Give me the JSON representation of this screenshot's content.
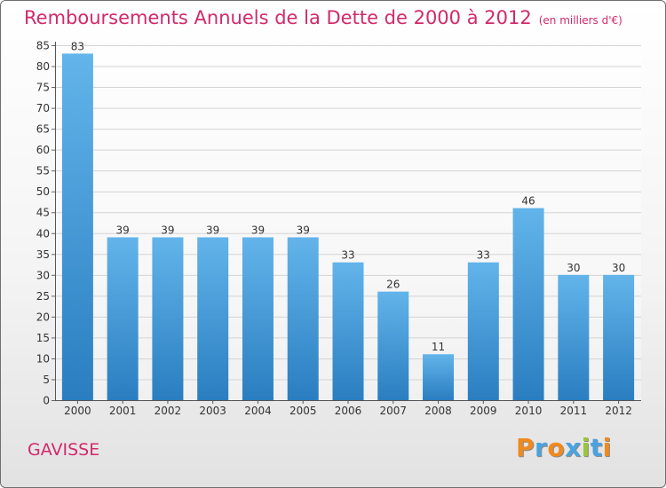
{
  "chart_data": {
    "type": "bar",
    "title": "Remboursements Annuels de la Dette de 2000 à 2012",
    "subtitle": "(en milliers d'€)",
    "categories": [
      "2000",
      "2001",
      "2002",
      "2003",
      "2004",
      "2005",
      "2006",
      "2007",
      "2008",
      "2009",
      "2010",
      "2011",
      "2012"
    ],
    "values": [
      83,
      39,
      39,
      39,
      39,
      39,
      33,
      26,
      11,
      33,
      46,
      30,
      30
    ],
    "ylim": [
      0,
      85
    ],
    "yticks": [
      0,
      5,
      10,
      15,
      20,
      25,
      30,
      35,
      40,
      45,
      50,
      55,
      60,
      65,
      70,
      75,
      80,
      85
    ],
    "grid": true,
    "legend": "none"
  },
  "footer": {
    "city": "GAVISSE",
    "logo": "Proxiti"
  },
  "colors": {
    "title": "#d2296a",
    "bar_light": "#62b4ea",
    "bar_dark": "#2a7ec0",
    "logo_letters": [
      "#f08a1c",
      "#4aa3e0",
      "#f08a1c",
      "#4aa3e0",
      "#9bc53d",
      "#4aa3e0",
      "#f08a1c"
    ]
  }
}
